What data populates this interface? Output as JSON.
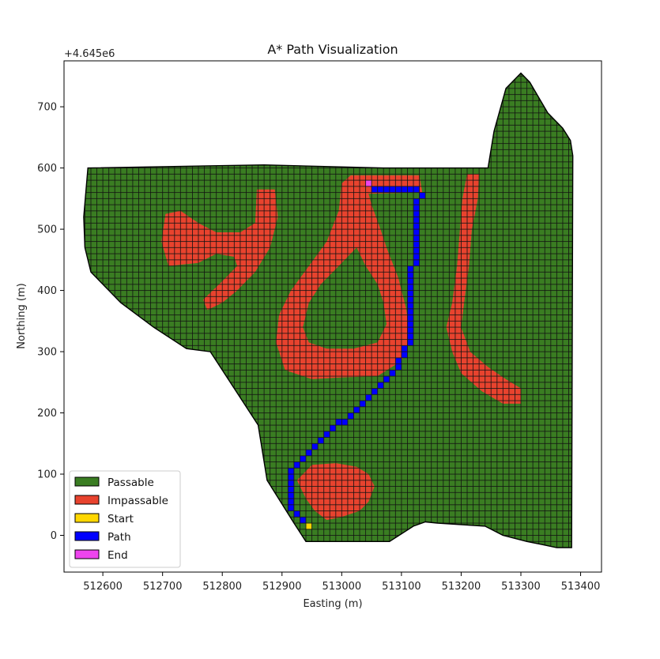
{
  "chart_data": {
    "type": "heatmap",
    "title": "A* Path Visualization",
    "xlabel": "Easting (m)",
    "ylabel": "Northing (m)",
    "y_offset_label": "+4.645e6",
    "xlim": [
      512535,
      513435
    ],
    "ylim": [
      -60,
      775
    ],
    "xticks": [
      512600,
      512700,
      512800,
      512900,
      513000,
      513100,
      513200,
      513300,
      513400
    ],
    "xtick_labels": [
      "512600",
      "512700",
      "512800",
      "512900",
      "513000",
      "513100",
      "513200",
      "513300",
      "513400"
    ],
    "yticks": [
      0,
      100,
      200,
      300,
      400,
      500,
      600,
      700
    ],
    "ytick_labels": [
      "0",
      "100",
      "200",
      "300",
      "400",
      "500",
      "600",
      "700"
    ],
    "cell_size": 10,
    "grid": true,
    "legend": {
      "location": "lower-left",
      "entries": [
        {
          "label": "Passable",
          "color": "#3a7d22"
        },
        {
          "label": "Impassable",
          "color": "#e8432e"
        },
        {
          "label": "Start",
          "color": "#ffd700"
        },
        {
          "label": "Path",
          "color": "#0000ff"
        },
        {
          "label": "End",
          "color": "#ee44ee"
        }
      ]
    },
    "colors": {
      "passable": "#3a7d22",
      "impassable": "#e8432e",
      "start": "#ffd700",
      "path": "#0000ff",
      "end": "#ee44ee",
      "cell_edge": "#111111"
    },
    "boundary": [
      [
        512575,
        600
      ],
      [
        512870,
        605
      ],
      [
        513070,
        600
      ],
      [
        513245,
        600
      ],
      [
        513255,
        660
      ],
      [
        513275,
        730
      ],
      [
        513300,
        755
      ],
      [
        513315,
        740
      ],
      [
        513345,
        690
      ],
      [
        513370,
        665
      ],
      [
        513383,
        645
      ],
      [
        513387,
        620
      ],
      [
        513385,
        -20
      ],
      [
        513360,
        -20
      ],
      [
        513335,
        -15
      ],
      [
        513310,
        -10
      ],
      [
        513270,
        0
      ],
      [
        513240,
        15
      ],
      [
        513160,
        20
      ],
      [
        513140,
        22
      ],
      [
        513120,
        15
      ],
      [
        513080,
        -10
      ],
      [
        512940,
        -10
      ],
      [
        512920,
        20
      ],
      [
        512875,
        90
      ],
      [
        512860,
        180
      ],
      [
        512780,
        300
      ],
      [
        512740,
        305
      ],
      [
        512685,
        340
      ],
      [
        512630,
        380
      ],
      [
        512580,
        430
      ],
      [
        512570,
        470
      ],
      [
        512568,
        520
      ]
    ],
    "impassable_regions": [
      {
        "name": "blob-west",
        "points": [
          [
            512705,
            525
          ],
          [
            512730,
            530
          ],
          [
            512760,
            510
          ],
          [
            512790,
            495
          ],
          [
            512830,
            495
          ],
          [
            512855,
            510
          ],
          [
            512858,
            565
          ],
          [
            512888,
            565
          ],
          [
            512893,
            520
          ],
          [
            512880,
            470
          ],
          [
            512855,
            430
          ],
          [
            512825,
            400
          ],
          [
            512800,
            380
          ],
          [
            512775,
            368
          ],
          [
            512768,
            385
          ],
          [
            512800,
            415
          ],
          [
            512825,
            440
          ],
          [
            512820,
            455
          ],
          [
            512790,
            460
          ],
          [
            512760,
            445
          ],
          [
            512710,
            440
          ],
          [
            512698,
            480
          ]
        ]
      },
      {
        "name": "loop-outer",
        "points": [
          [
            513015,
            588
          ],
          [
            513130,
            588
          ],
          [
            513135,
            560
          ],
          [
            513045,
            558
          ],
          [
            513050,
            540
          ],
          [
            513065,
            500
          ],
          [
            513075,
            470
          ],
          [
            513095,
            420
          ],
          [
            513108,
            370
          ],
          [
            513115,
            320
          ],
          [
            513100,
            285
          ],
          [
            513060,
            260
          ],
          [
            513000,
            258
          ],
          [
            512950,
            255
          ],
          [
            512905,
            270
          ],
          [
            512890,
            315
          ],
          [
            512895,
            360
          ],
          [
            512915,
            400
          ],
          [
            512945,
            440
          ],
          [
            512975,
            480
          ],
          [
            512995,
            530
          ],
          [
            513000,
            575
          ]
        ]
      },
      {
        "name": "loop-hole",
        "points": [
          [
            513025,
            470
          ],
          [
            513040,
            440
          ],
          [
            513060,
            410
          ],
          [
            513070,
            380
          ],
          [
            513075,
            345
          ],
          [
            513060,
            315
          ],
          [
            513020,
            305
          ],
          [
            512975,
            305
          ],
          [
            512945,
            315
          ],
          [
            512935,
            340
          ],
          [
            512945,
            380
          ],
          [
            512965,
            410
          ],
          [
            512995,
            440
          ]
        ]
      },
      {
        "name": "band-east",
        "points": [
          [
            513210,
            590
          ],
          [
            513230,
            590
          ],
          [
            513228,
            550
          ],
          [
            513218,
            500
          ],
          [
            513213,
            440
          ],
          [
            513205,
            380
          ],
          [
            513200,
            340
          ],
          [
            513215,
            300
          ],
          [
            513245,
            275
          ],
          [
            513275,
            255
          ],
          [
            513300,
            240
          ],
          [
            513300,
            215
          ],
          [
            513270,
            215
          ],
          [
            513235,
            235
          ],
          [
            513200,
            265
          ],
          [
            513185,
            300
          ],
          [
            513175,
            340
          ],
          [
            513185,
            380
          ],
          [
            513193,
            440
          ],
          [
            513198,
            500
          ],
          [
            513202,
            550
          ]
        ]
      },
      {
        "name": "blob-south",
        "points": [
          [
            512925,
            90
          ],
          [
            512950,
            115
          ],
          [
            512990,
            118
          ],
          [
            513025,
            112
          ],
          [
            513045,
            100
          ],
          [
            513055,
            80
          ],
          [
            513045,
            55
          ],
          [
            513030,
            40
          ],
          [
            513000,
            30
          ],
          [
            512975,
            25
          ],
          [
            512955,
            40
          ],
          [
            512940,
            60
          ]
        ]
      }
    ],
    "path": {
      "start": [
        512945,
        15
      ],
      "end": [
        513045,
        575
      ],
      "waypoints": [
        [
          512945,
          15
        ],
        [
          512935,
          25
        ],
        [
          512925,
          35
        ],
        [
          512915,
          45
        ],
        [
          512915,
          105
        ],
        [
          512925,
          115
        ],
        [
          512935,
          125
        ],
        [
          512945,
          135
        ],
        [
          513045,
          225
        ],
        [
          513075,
          255
        ],
        [
          513105,
          295
        ],
        [
          513115,
          325
        ],
        [
          513115,
          435
        ],
        [
          513125,
          445
        ],
        [
          513125,
          545
        ],
        [
          513135,
          555
        ],
        [
          513115,
          565
        ],
        [
          513055,
          565
        ],
        [
          513045,
          575
        ]
      ]
    }
  }
}
